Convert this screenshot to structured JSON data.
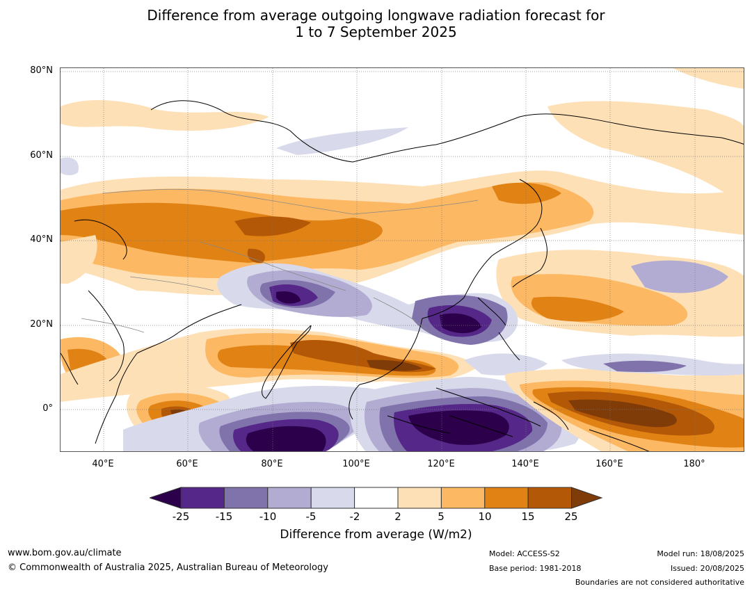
{
  "title_line1": "Difference from average outgoing longwave radiation forecast for",
  "title_line2": "1 to 7 September 2025",
  "lat_labels": [
    "80°N",
    "60°N",
    "40°N",
    "20°N",
    "0°"
  ],
  "lon_labels": [
    "40°E",
    "60°E",
    "80°E",
    "100°E",
    "120°E",
    "140°E",
    "160°E",
    "180°"
  ],
  "colorbar": {
    "ticks": [
      "-25",
      "-15",
      "-10",
      "-5",
      "-2",
      "2",
      "5",
      "10",
      "15",
      "25"
    ],
    "colors": [
      "#2d004b",
      "#542788",
      "#8073ac",
      "#b2abd2",
      "#d8daeb",
      "#ffffff",
      "#fee0b6",
      "#fdb863",
      "#e08214",
      "#b35806",
      "#7f3b08"
    ],
    "label": "Difference from average (W/m2)"
  },
  "footer": {
    "website": "www.bom.gov.au/climate",
    "copyright": "© Commonwealth of Australia 2025, Australian Bureau of Meteorology",
    "model": "Model: ACCESS-S2",
    "base_period": "Base period: 1981-2018",
    "model_run": "Model run: 18/08/2025",
    "issued": "Issued: 20/08/2025",
    "disclaimer": "Boundaries are not considered authoritative"
  }
}
